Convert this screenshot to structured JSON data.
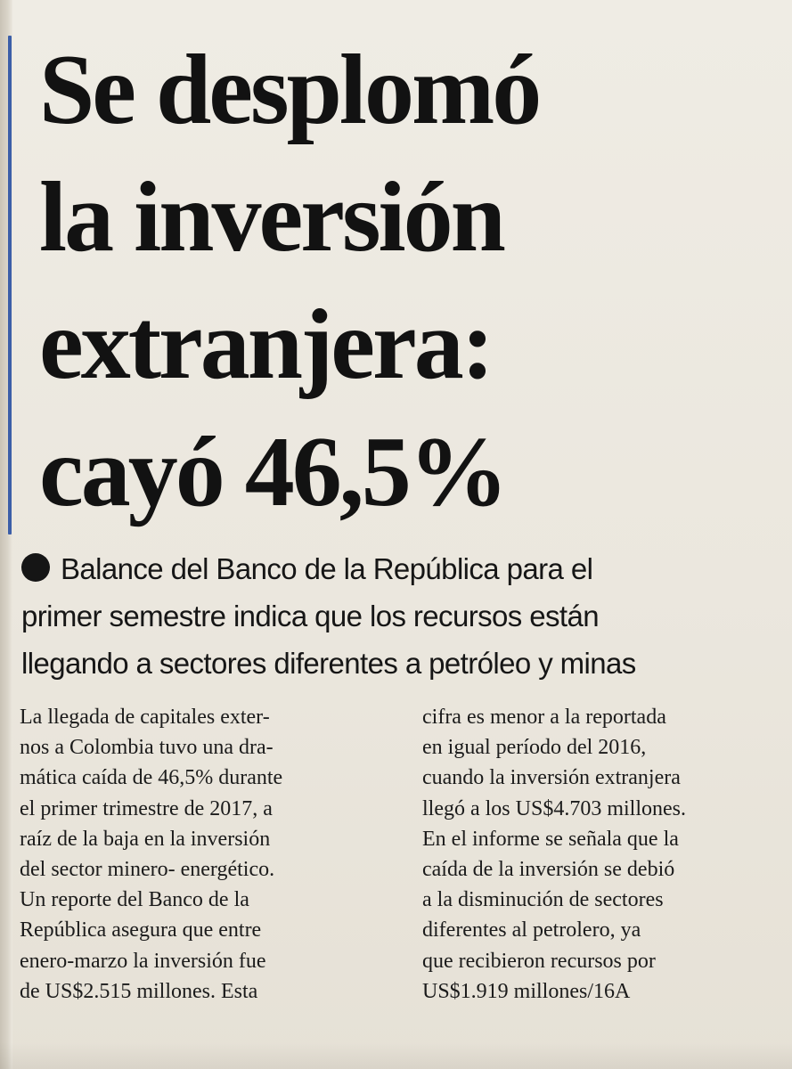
{
  "headline": {
    "lines": [
      "Se desplomó",
      "la inversión",
      "extranjera:",
      "cayó 46,5%"
    ]
  },
  "subhead": {
    "lines": [
      "Balance del Banco de la República para el",
      "primer semestre indica que los recursos están",
      "llegando a sectores diferentes a petróleo y minas"
    ]
  },
  "body": {
    "column1": [
      "La llegada de capitales exter-",
      "nos a Colombia tuvo una dra-",
      "mática caída de 46,5% durante",
      "el primer trimestre de 2017, a",
      "raíz de la baja en la inversión",
      "del sector minero- energético.",
      "Un reporte del Banco de la",
      "República asegura que entre",
      "enero-marzo la inversión fue",
      "de US$2.515 millones. Esta"
    ],
    "column2": [
      "cifra es menor a la reportada",
      "en igual período del 2016,",
      "cuando la inversión extranjera",
      "llegó a los US$4.703 millones.",
      "En el informe se señala que la",
      "caída de la inversión se debió",
      "a la disminución de sectores",
      "diferentes al petrolero, ya",
      "que recibieron recursos por",
      "US$1.919 millones/16A"
    ]
  },
  "colors": {
    "ink": "#121212",
    "paper": "#ece8df",
    "margin_rule": "#3b5ea8"
  }
}
